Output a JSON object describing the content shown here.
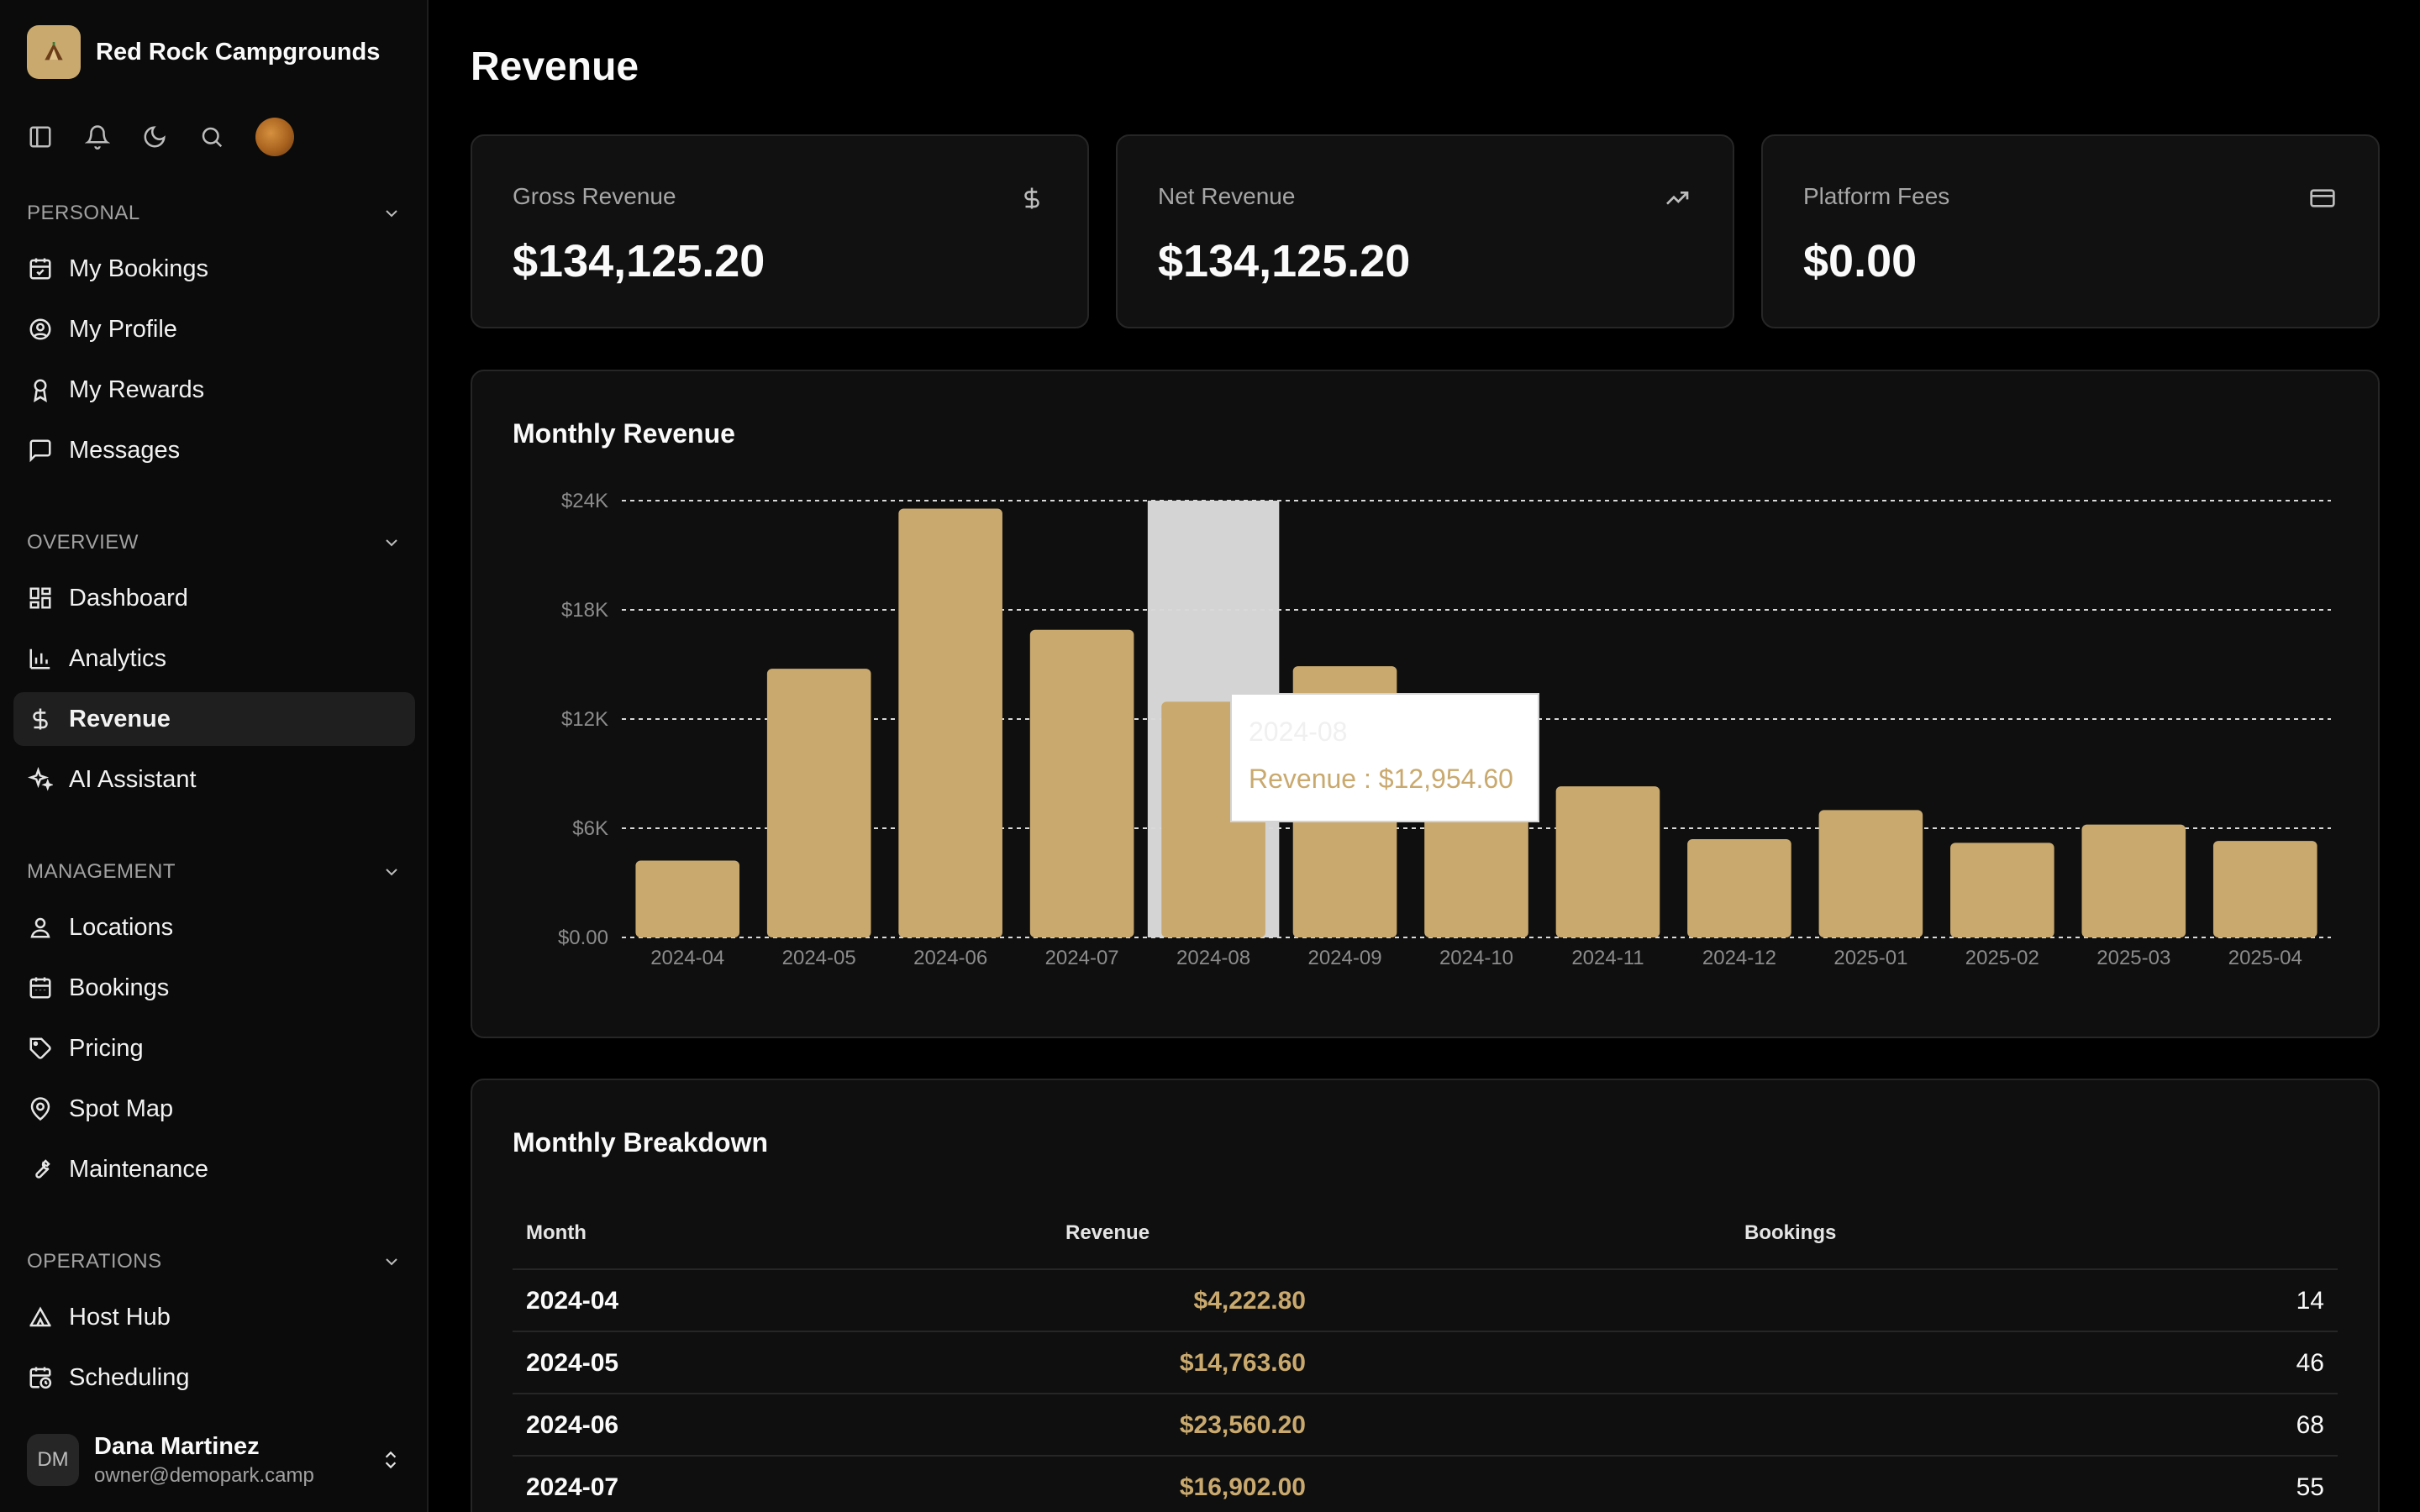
{
  "brand": {
    "name": "Red Rock Campgrounds"
  },
  "toolbar": {
    "icons": [
      "sidebar-toggle-icon",
      "bell-icon",
      "moon-icon",
      "search-icon"
    ]
  },
  "sidebar": {
    "personal": {
      "label": "PERSONAL",
      "items": [
        {
          "label": "My Bookings",
          "icon": "calendar-check-icon"
        },
        {
          "label": "My Profile",
          "icon": "user-circle-icon"
        },
        {
          "label": "My Rewards",
          "icon": "award-icon"
        },
        {
          "label": "Messages",
          "icon": "message-square-icon"
        }
      ]
    },
    "overview": {
      "label": "OVERVIEW",
      "items": [
        {
          "label": "Dashboard",
          "icon": "layout-dashboard-icon"
        },
        {
          "label": "Analytics",
          "icon": "bar-chart-icon"
        },
        {
          "label": "Revenue",
          "icon": "dollar-sign-icon",
          "active": true
        },
        {
          "label": "AI Assistant",
          "icon": "sparkles-icon"
        }
      ]
    },
    "management": {
      "label": "MANAGEMENT",
      "items": [
        {
          "label": "Locations",
          "icon": "user-pin-icon"
        },
        {
          "label": "Bookings",
          "icon": "calendar-icon"
        },
        {
          "label": "Pricing",
          "icon": "tag-icon"
        },
        {
          "label": "Spot Map",
          "icon": "map-pin-icon"
        },
        {
          "label": "Maintenance",
          "icon": "wrench-icon"
        }
      ]
    },
    "operations": {
      "label": "OPERATIONS",
      "items": [
        {
          "label": "Host Hub",
          "icon": "tent-icon"
        },
        {
          "label": "Scheduling",
          "icon": "calendar-clock-icon"
        }
      ]
    }
  },
  "user": {
    "initials": "DM",
    "name": "Dana Martinez",
    "email": "owner@demopark.camp"
  },
  "page": {
    "title": "Revenue"
  },
  "stats": [
    {
      "label": "Gross Revenue",
      "value": "$134,125.20",
      "icon": "dollar-sign-icon"
    },
    {
      "label": "Net Revenue",
      "value": "$134,125.20",
      "icon": "trending-up-icon"
    },
    {
      "label": "Platform Fees",
      "value": "$0.00",
      "icon": "credit-card-icon"
    }
  ],
  "chart_panel": {
    "title": "Monthly Revenue"
  },
  "tooltip": {
    "month": "2024-08",
    "text": "Revenue : $12,954.60"
  },
  "chart_data": {
    "type": "bar",
    "categories": [
      "2024-04",
      "2024-05",
      "2024-06",
      "2024-07",
      "2024-08",
      "2024-09",
      "2024-10",
      "2024-11",
      "2024-12",
      "2025-01",
      "2025-02",
      "2025-03",
      "2025-04"
    ],
    "series": [
      {
        "name": "Revenue",
        "values": [
          4222.8,
          14763.6,
          23560.2,
          16902.0,
          12954.6,
          14900,
          6600,
          8300,
          5400,
          7000,
          5200,
          6200,
          5300
        ]
      }
    ],
    "ylim": [
      0,
      24000
    ],
    "yticks": [
      0,
      6000,
      12000,
      18000,
      24000
    ],
    "ytick_labels": [
      "$0.00",
      "$6K",
      "$12K",
      "$18K",
      "$24K"
    ],
    "highlighted_category": "2024-08",
    "grid": true,
    "bar_color": "#c9a96e",
    "highlight_color": "#d4d4d4"
  },
  "breakdown": {
    "title": "Monthly Breakdown",
    "columns": [
      "Month",
      "Revenue",
      "Bookings"
    ],
    "rows": [
      {
        "month": "2024-04",
        "revenue": "$4,222.80",
        "bookings": "14"
      },
      {
        "month": "2024-05",
        "revenue": "$14,763.60",
        "bookings": "46"
      },
      {
        "month": "2024-06",
        "revenue": "$23,560.20",
        "bookings": "68"
      },
      {
        "month": "2024-07",
        "revenue": "$16,902.00",
        "bookings": "55"
      }
    ]
  },
  "colors": {
    "accent": "#c9a96e",
    "background": "#000000",
    "card": "#111111"
  }
}
